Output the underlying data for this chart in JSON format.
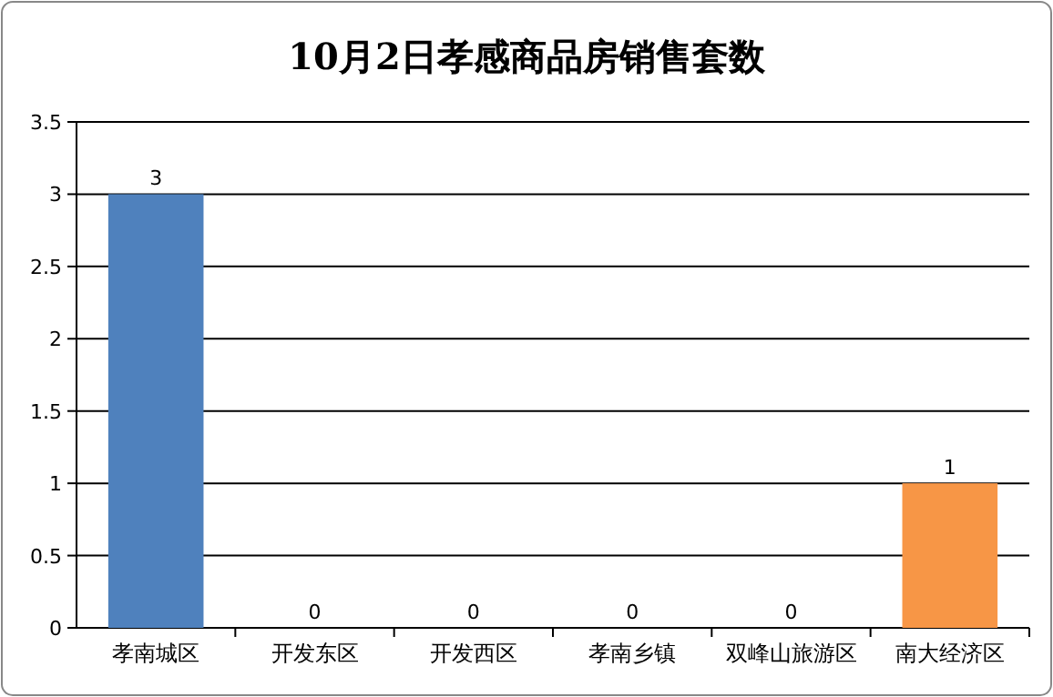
{
  "chart_data": {
    "type": "bar",
    "title": "10月2日孝感商品房销售套数",
    "categories": [
      "孝南城区",
      "开发东区",
      "开发西区",
      "孝南乡镇",
      "双峰山旅游区",
      "南大经济区"
    ],
    "values": [
      3,
      0,
      0,
      0,
      0,
      1
    ],
    "colors": [
      "#4f81bd",
      "#4f81bd",
      "#4f81bd",
      "#4f81bd",
      "#4f81bd",
      "#f79646"
    ],
    "ylim": [
      0,
      3.5
    ],
    "yticks": [
      0,
      0.5,
      1,
      1.5,
      2,
      2.5,
      3,
      3.5
    ],
    "grid": "y",
    "data_labels": true
  }
}
